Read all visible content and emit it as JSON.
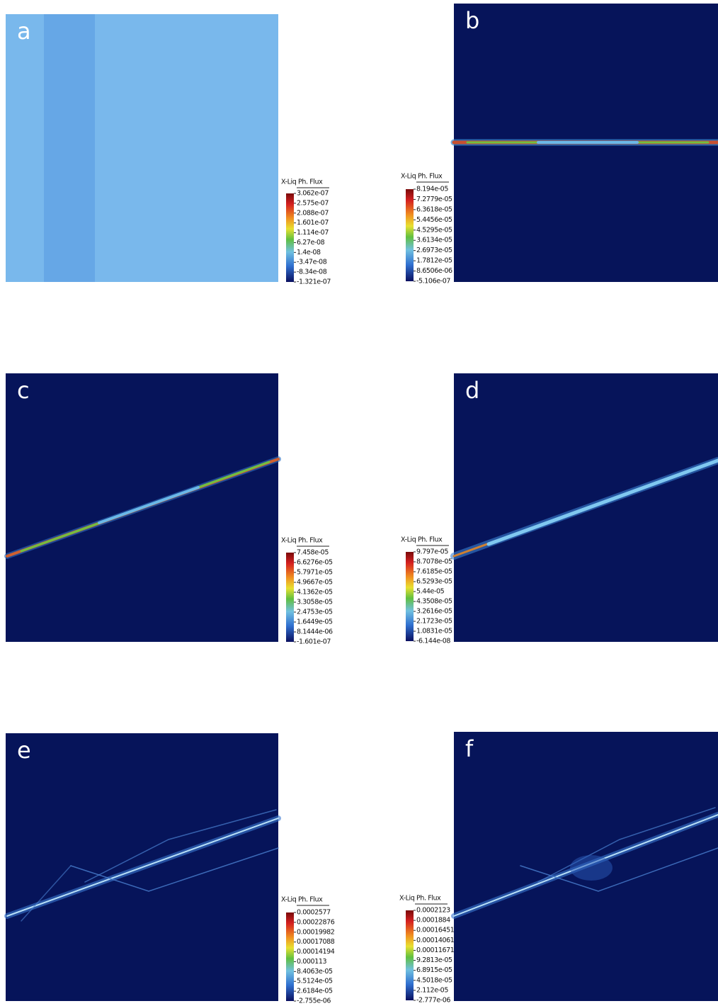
{
  "panels": [
    {
      "label": "a",
      "legend_title": "X-Liq Ph. Flux",
      "ticks": [
        "3.062e-07",
        "2.575e-07",
        "2.088e-07",
        "1.601e-07",
        "1.114e-07",
        "6.27e-08",
        "1.4e-08",
        "-3.47e-08",
        "-8.34e-08",
        "-1.321e-07"
      ]
    },
    {
      "label": "b",
      "legend_title": "X-Liq Ph. Flux",
      "ticks": [
        "8.194e-05",
        "7.2779e-05",
        "6.3618e-05",
        "5.4456e-05",
        "4.5295e-05",
        "3.6134e-05",
        "2.6973e-05",
        "1.7812e-05",
        "8.6506e-06",
        "-5.106e-07"
      ]
    },
    {
      "label": "c",
      "legend_title": "X-Liq Ph. Flux",
      "ticks": [
        "7.458e-05",
        "6.6276e-05",
        "5.7971e-05",
        "4.9667e-05",
        "4.1362e-05",
        "3.3058e-05",
        "2.4753e-05",
        "1.6449e-05",
        "8.1444e-06",
        "-1.601e-07"
      ]
    },
    {
      "label": "d",
      "legend_title": "X-Liq Ph. Flux",
      "ticks": [
        "9.797e-05",
        "8.7078e-05",
        "7.6185e-05",
        "6.5293e-05",
        "5.44e-05",
        "4.3508e-05",
        "3.2616e-05",
        "2.1723e-05",
        "1.0831e-05",
        "-6.144e-08"
      ]
    },
    {
      "label": "e",
      "legend_title": "X-Liq Ph. Flux",
      "ticks": [
        "0.0002577",
        "0.00022876",
        "0.00019982",
        "0.00017088",
        "0.00014194",
        "0.000113",
        "8.4063e-05",
        "5.5124e-05",
        "2.6184e-05",
        "-2.755e-06"
      ]
    },
    {
      "label": "f",
      "legend_title": "X-Liq Ph. Flux",
      "ticks": [
        "0.0002123",
        "0.0001884",
        "0.00016451",
        "0.00014061",
        "0.00011671",
        "9.2813e-05",
        "6.8915e-05",
        "4.5018e-05",
        "2.112e-05",
        "-2.777e-06"
      ]
    }
  ]
}
